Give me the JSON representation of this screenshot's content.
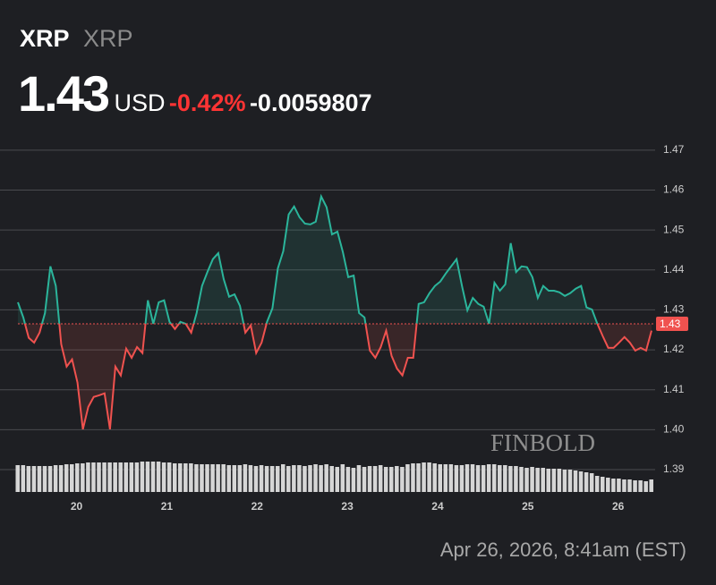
{
  "header": {
    "symbol": "XRP",
    "name": "XRP",
    "price": "1.43",
    "currency": "USD",
    "change_percent": "-0.42%",
    "change": "-0.0059807",
    "timestamp": "Apr 26, 2026, 8:41am (EST)",
    "watermark": "FINBOLD"
  },
  "chart_data": {
    "type": "line",
    "x": [
      19.35,
      19.41,
      19.47,
      19.53,
      19.59,
      19.65,
      19.71,
      19.77,
      19.83,
      19.89,
      19.95,
      20.01,
      20.07,
      20.13,
      20.19,
      20.25,
      20.31,
      20.37,
      20.43,
      20.49,
      20.55,
      20.61,
      20.67,
      20.73,
      20.79,
      20.85,
      20.91,
      20.97,
      21.03,
      21.09,
      21.15,
      21.21,
      21.27,
      21.33,
      21.39,
      21.45,
      21.51,
      21.57,
      21.63,
      21.69,
      21.75,
      21.81,
      21.87,
      21.93,
      21.99,
      22.05,
      22.11,
      22.17,
      22.23,
      22.29,
      22.35,
      22.41,
      22.47,
      22.53,
      22.59,
      22.65,
      22.71,
      22.77,
      22.83,
      22.89,
      22.95,
      23.01,
      23.07,
      23.13,
      23.19,
      23.25,
      23.31,
      23.37,
      23.43,
      23.49,
      23.55,
      23.61,
      23.67,
      23.73,
      23.79,
      23.85,
      23.91,
      23.97,
      24.03,
      24.09,
      24.15,
      24.21,
      24.27,
      24.33,
      24.39,
      24.45,
      24.51,
      24.57,
      24.63,
      24.69,
      24.75,
      24.81,
      24.87,
      24.93,
      24.99,
      25.05,
      25.11,
      25.17,
      25.23,
      25.29,
      25.35,
      25.41,
      25.47,
      25.53,
      25.59,
      25.65,
      25.71,
      25.77,
      25.83,
      25.89,
      25.95,
      26.01,
      26.07,
      26.13,
      26.19,
      26.25,
      26.31,
      26.37
    ],
    "values": [
      1.4319,
      1.4281,
      1.423,
      1.4218,
      1.4243,
      1.4292,
      1.4409,
      1.436,
      1.4214,
      1.4158,
      1.4176,
      1.4118,
      1.4001,
      1.4057,
      1.4082,
      1.4086,
      1.4091,
      1.4001,
      1.4158,
      1.4136,
      1.4203,
      1.418,
      1.4207,
      1.4192,
      1.4324,
      1.4265,
      1.4319,
      1.4324,
      1.427,
      1.4252,
      1.427,
      1.4265,
      1.4243,
      1.4292,
      1.436,
      1.4395,
      1.4427,
      1.4442,
      1.4377,
      1.4333,
      1.4339,
      1.431,
      1.4243,
      1.4261,
      1.4192,
      1.4218,
      1.427,
      1.4304,
      1.4404,
      1.4447,
      1.4539,
      1.4559,
      1.4532,
      1.4516,
      1.4514,
      1.4521,
      1.4584,
      1.4557,
      1.4489,
      1.4496,
      1.4445,
      1.4382,
      1.4386,
      1.4292,
      1.4281,
      1.4198,
      1.418,
      1.4207,
      1.4248,
      1.4185,
      1.4153,
      1.4136,
      1.418,
      1.418,
      1.4315,
      1.4319,
      1.4342,
      1.436,
      1.4371,
      1.4391,
      1.4409,
      1.4427,
      1.436,
      1.4299,
      1.433,
      1.4315,
      1.4308,
      1.4265,
      1.4368,
      1.4348,
      1.4364,
      1.4467,
      1.4395,
      1.4409,
      1.4407,
      1.4382,
      1.433,
      1.436,
      1.4348,
      1.4348,
      1.4344,
      1.4335,
      1.4342,
      1.4353,
      1.436,
      1.4306,
      1.4301,
      1.4265,
      1.4234,
      1.4205,
      1.4205,
      1.4218,
      1.4232,
      1.4218,
      1.4198,
      1.4205,
      1.4198,
      1.4248
    ],
    "volume": [
      30,
      30,
      29,
      29,
      29,
      29,
      29,
      30,
      30,
      31,
      31,
      32,
      32,
      33,
      33,
      33,
      33,
      33,
      33,
      33,
      33,
      33,
      33,
      34,
      34,
      34,
      34,
      33,
      33,
      32,
      32,
      32,
      32,
      31,
      31,
      31,
      31,
      31,
      31,
      30,
      30,
      30,
      31,
      30,
      29,
      30,
      29,
      29,
      29,
      31,
      29,
      30,
      30,
      29,
      30,
      31,
      30,
      31,
      29,
      28,
      31,
      28,
      27,
      30,
      28,
      29,
      29,
      30,
      28,
      28,
      29,
      28,
      31,
      32,
      32,
      33,
      33,
      32,
      31,
      31,
      31,
      30,
      30,
      31,
      31,
      30,
      30,
      31,
      31,
      30,
      30,
      29,
      29,
      28,
      27,
      28,
      27,
      27,
      26,
      26,
      26,
      25,
      25,
      24,
      23,
      22,
      21,
      18,
      17,
      16,
      15,
      15,
      14,
      14,
      13,
      13,
      12,
      14
    ],
    "price_line": {
      "value": 1.4265,
      "label": "1.43"
    },
    "xlim": [
      19.35,
      26.41
    ],
    "xticks": [
      20,
      21,
      22,
      23,
      24,
      25,
      26
    ],
    "ylim": [
      1.3844,
      1.474
    ],
    "yticks": [
      1.39,
      {
        "value": 1.4,
        "label": "1.40"
      },
      1.41,
      1.42,
      1.43,
      1.44,
      1.45,
      1.46,
      1.47
    ],
    "grid": true,
    "up_color": "#2bb59b",
    "down_color": "#f0524f",
    "volume_color": "#d6d6d6"
  }
}
